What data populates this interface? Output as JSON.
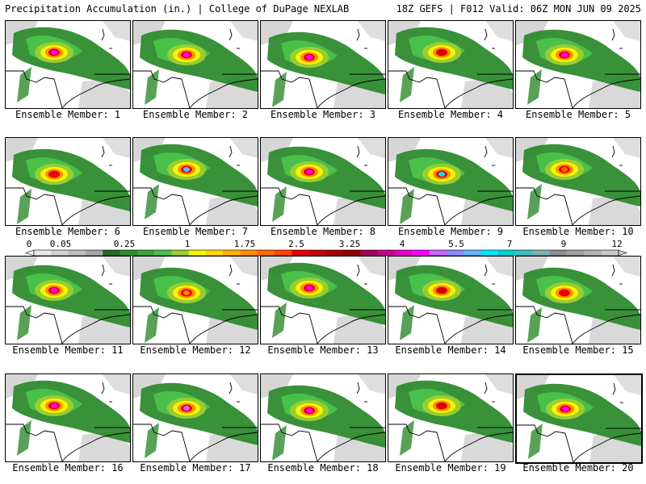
{
  "header": {
    "left": "Precipitation Accumulation (in.) | College of DuPage NEXLAB",
    "right": "18Z GEFS | F012 Valid: 06Z MON JUN 09 2025"
  },
  "colorbar": {
    "tick_labels": [
      "0",
      "0.05",
      "0.25",
      "1",
      "1.75",
      "2.5",
      "3.25",
      "4",
      "5.5",
      "7",
      "9",
      "12"
    ],
    "colors": [
      "#e8e8e8",
      "#d2d2d2",
      "#bdbdbd",
      "#a8a8a8",
      "#236b23",
      "#2e8b2e",
      "#3aa53a",
      "#49c049",
      "#9acd32",
      "#f5f500",
      "#ffd700",
      "#ffb000",
      "#ff8c00",
      "#ff6a00",
      "#ff4500",
      "#e60000",
      "#c80000",
      "#aa0000",
      "#8b0000",
      "#a0005a",
      "#c8008c",
      "#e600c8",
      "#ff00ff",
      "#c864ff",
      "#8a8aff",
      "#64b4ff",
      "#00e6ff",
      "#00d2d2",
      "#40c0c0",
      "#80b0b0",
      "#909090",
      "#a0a0a0",
      "#b4b4b4",
      "#c8c8c8"
    ]
  },
  "panels": [
    {
      "label": "Ensemble Member: 1",
      "center_color": "#ff00ff"
    },
    {
      "label": "Ensemble Member: 2",
      "center_color": "#ff00ff"
    },
    {
      "label": "Ensemble Member: 3",
      "center_color": "#ff00ff"
    },
    {
      "label": "Ensemble Member: 4",
      "center_color": "#c80000"
    },
    {
      "label": "Ensemble Member: 5",
      "center_color": "#ff00ff"
    },
    {
      "label": "Ensemble Member: 6",
      "center_color": "#e60000"
    },
    {
      "label": "Ensemble Member: 7",
      "center_color": "#64b4ff"
    },
    {
      "label": "Ensemble Member: 8",
      "center_color": "#ff00ff"
    },
    {
      "label": "Ensemble Member: 9",
      "center_color": "#00e6ff"
    },
    {
      "label": "Ensemble Member: 10",
      "center_color": "#ff6a00"
    },
    {
      "label": "Ensemble Member: 11",
      "center_color": "#ff00ff"
    },
    {
      "label": "Ensemble Member: 12",
      "center_color": "#ff8c00"
    },
    {
      "label": "Ensemble Member: 13",
      "center_color": "#ff00ff"
    },
    {
      "label": "Ensemble Member: 14",
      "center_color": "#c80000"
    },
    {
      "label": "Ensemble Member: 15",
      "center_color": "#e60000"
    },
    {
      "label": "Ensemble Member: 16",
      "center_color": "#ff00ff"
    },
    {
      "label": "Ensemble Member: 17",
      "center_color": "#c864ff"
    },
    {
      "label": "Ensemble Member: 18",
      "center_color": "#ff00ff"
    },
    {
      "label": "Ensemble Member: 19",
      "center_color": "#c80000"
    },
    {
      "label": "Ensemble Member: 20",
      "center_color": "#ff00ff"
    }
  ]
}
